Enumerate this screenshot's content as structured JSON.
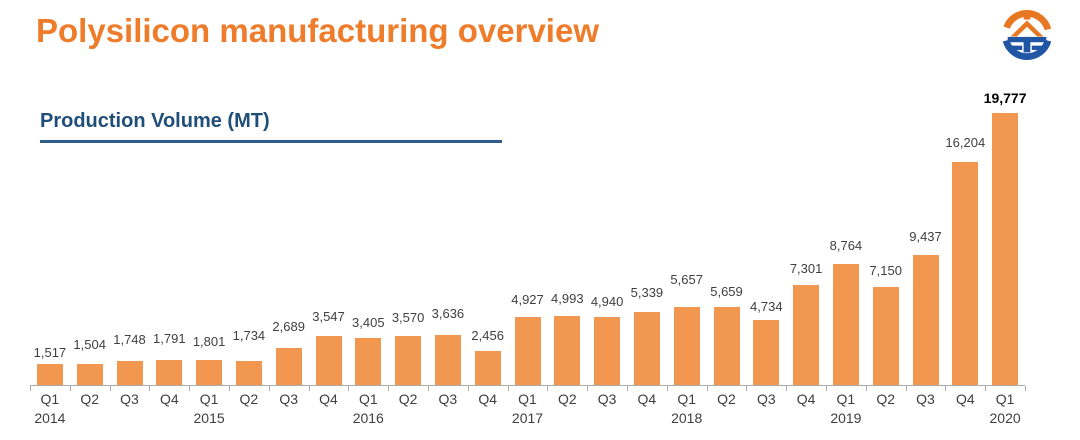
{
  "header": {
    "title": "Polysilicon manufacturing overview"
  },
  "logo": {
    "name": "company-logo",
    "orange": "#E87722",
    "blue": "#2156A5"
  },
  "colors": {
    "title_orange": "#EE7C2B",
    "subtitle_blue": "#1F4E79",
    "underline_blue": "#2F5C8C",
    "bar_orange": "#F19750",
    "label_gray": "#3F3F3F",
    "axis_gray": "#ABABAB",
    "bold_label_black": "#000000"
  },
  "chart_data": {
    "type": "bar",
    "title": "Production Volume (MT)",
    "xlabel": "",
    "ylabel": "Production Volume (MT)",
    "grid": false,
    "legend": "none",
    "ylim": [
      0,
      20000
    ],
    "quarters": [
      "Q1",
      "Q2",
      "Q3",
      "Q4",
      "Q1",
      "Q2",
      "Q3",
      "Q4",
      "Q1",
      "Q2",
      "Q3",
      "Q4",
      "Q1",
      "Q2",
      "Q3",
      "Q4",
      "Q1",
      "Q2",
      "Q3",
      "Q4",
      "Q1",
      "Q2",
      "Q3",
      "Q4",
      "Q1"
    ],
    "years": [
      "2014",
      null,
      null,
      null,
      "2015",
      null,
      null,
      null,
      "2016",
      null,
      null,
      null,
      "2017",
      null,
      null,
      null,
      "2018",
      null,
      null,
      null,
      "2019",
      null,
      null,
      null,
      "2020"
    ],
    "values": [
      1517,
      1504,
      1748,
      1791,
      1801,
      1734,
      2689,
      3547,
      3405,
      3570,
      3636,
      2456,
      4927,
      4993,
      4940,
      5339,
      5657,
      5659,
      4734,
      7301,
      8764,
      7150,
      9437,
      16204,
      19777
    ],
    "bold_value_indices": [
      24
    ],
    "label_dy": [
      0,
      8,
      10,
      10,
      7,
      14,
      10,
      8,
      4,
      7,
      10,
      4,
      6,
      6,
      4,
      8,
      16,
      4,
      2,
      5,
      7,
      5,
      7,
      8,
      3
    ],
    "bar_color": "#F19750",
    "label_color": "#3F3F3F",
    "axis_color": "#ABABAB"
  }
}
